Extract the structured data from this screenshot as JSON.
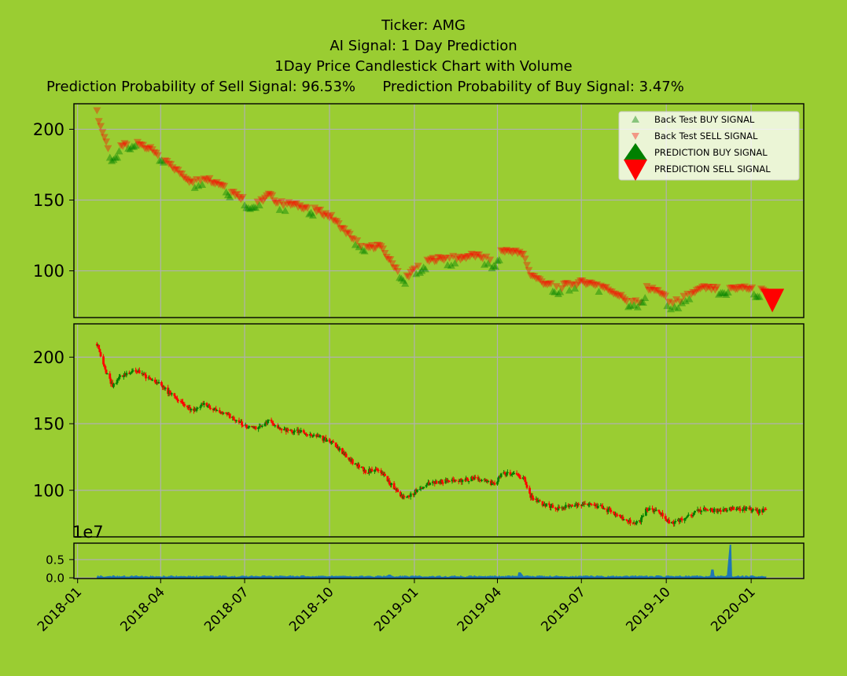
{
  "title_lines": [
    "Ticker: AMG",
    "AI Signal: 1 Day Prediction",
    "1Day Price Candlestick Chart with Volume"
  ],
  "prob_sell": "Prediction Probability of Sell Signal: 96.53%",
  "prob_buy": "Prediction Probability of Buy Signal: 3.47%",
  "colors": {
    "background": "#9acd32",
    "buy": "#008000",
    "sell": "#ff0000",
    "volume": "#1f77b4"
  },
  "chart_data": [
    {
      "type": "scatter",
      "panel": "signals",
      "yticks": [
        100,
        150,
        200
      ],
      "ylim": [
        67,
        218
      ],
      "grid": true,
      "legend_position": "top-right",
      "legend": [
        "Back Test BUY SIGNAL",
        "Back Test SELL SIGNAL",
        "PREDICTION BUY SIGNAL",
        "PREDICTION SELL SIGNAL"
      ],
      "price_path": [
        [
          "2018-01-22",
          210
        ],
        [
          "2018-01-26",
          200
        ],
        [
          "2018-02-02",
          187
        ],
        [
          "2018-02-08",
          178
        ],
        [
          "2018-02-15",
          185
        ],
        [
          "2018-02-25",
          188
        ],
        [
          "2018-03-05",
          190
        ],
        [
          "2018-03-15",
          186
        ],
        [
          "2018-03-26",
          182
        ],
        [
          "2018-04-03",
          178
        ],
        [
          "2018-04-12",
          172
        ],
        [
          "2018-04-25",
          166
        ],
        [
          "2018-05-05",
          160
        ],
        [
          "2018-05-18",
          164
        ],
        [
          "2018-05-29",
          161
        ],
        [
          "2018-06-10",
          158
        ],
        [
          "2018-06-22",
          152
        ],
        [
          "2018-07-05",
          147
        ],
        [
          "2018-07-18",
          147
        ],
        [
          "2018-07-28",
          152
        ],
        [
          "2018-08-06",
          146
        ],
        [
          "2018-08-20",
          145
        ],
        [
          "2018-09-05",
          143
        ],
        [
          "2018-09-20",
          140
        ],
        [
          "2018-10-03",
          136
        ],
        [
          "2018-10-15",
          128
        ],
        [
          "2018-10-28",
          120
        ],
        [
          "2018-11-10",
          114
        ],
        [
          "2018-11-24",
          116
        ],
        [
          "2018-12-08",
          103
        ],
        [
          "2018-12-22",
          93
        ],
        [
          "2019-01-05",
          101
        ],
        [
          "2019-01-20",
          106
        ],
        [
          "2019-02-05",
          107
        ],
        [
          "2019-02-20",
          107
        ],
        [
          "2019-03-05",
          109
        ],
        [
          "2019-03-20",
          107
        ],
        [
          "2019-03-28",
          104
        ],
        [
          "2019-04-05",
          112
        ],
        [
          "2019-04-18",
          112
        ],
        [
          "2019-04-30",
          109
        ],
        [
          "2019-05-06",
          96
        ],
        [
          "2019-05-20",
          90
        ],
        [
          "2019-06-05",
          86
        ],
        [
          "2019-06-20",
          89
        ],
        [
          "2019-07-05",
          90
        ],
        [
          "2019-07-20",
          88
        ],
        [
          "2019-08-05",
          83
        ],
        [
          "2019-08-20",
          77
        ],
        [
          "2019-09-02",
          76
        ],
        [
          "2019-09-10",
          86
        ],
        [
          "2019-09-25",
          83
        ],
        [
          "2019-10-05",
          75
        ],
        [
          "2019-10-15",
          77
        ],
        [
          "2019-10-28",
          82
        ],
        [
          "2019-11-10",
          86
        ],
        [
          "2019-11-25",
          85
        ],
        [
          "2019-12-10",
          86
        ],
        [
          "2019-12-25",
          86
        ],
        [
          "2020-01-10",
          84
        ],
        [
          "2020-01-17",
          85
        ]
      ],
      "buy_signal_dates": [
        "2018-02-06",
        "2018-02-10",
        "2018-02-14",
        "2018-02-26",
        "2018-03-01",
        "2018-03-04",
        "2018-04-01",
        "2018-04-04",
        "2018-05-08",
        "2018-05-12",
        "2018-05-16",
        "2018-06-12",
        "2018-06-15",
        "2018-07-01",
        "2018-07-04",
        "2018-07-07",
        "2018-07-10",
        "2018-07-13",
        "2018-07-17",
        "2018-08-08",
        "2018-08-14",
        "2018-09-10",
        "2018-09-13",
        "2018-10-29",
        "2018-11-02",
        "2018-11-07",
        "2018-12-16",
        "2018-12-19",
        "2018-12-22",
        "2019-01-03",
        "2019-01-08",
        "2019-01-12",
        "2019-02-06",
        "2019-02-10",
        "2019-02-14",
        "2019-03-18",
        "2019-03-22",
        "2019-03-26",
        "2019-03-29",
        "2019-04-02",
        "2019-06-01",
        "2019-06-07",
        "2019-06-18",
        "2019-06-24",
        "2019-07-20",
        "2019-08-22",
        "2019-08-27",
        "2019-08-31",
        "2019-09-04",
        "2019-09-07",
        "2019-10-02",
        "2019-10-06",
        "2019-10-10",
        "2019-10-14",
        "2019-10-18",
        "2019-10-22",
        "2019-10-26",
        "2019-11-28",
        "2019-12-02",
        "2019-12-06",
        "2020-01-05",
        "2020-01-09"
      ],
      "prediction": {
        "date": "2020-01-24",
        "value": 79,
        "signal": "SELL"
      }
    },
    {
      "type": "candlestick",
      "panel": "price",
      "yticks": [
        100,
        150,
        200
      ],
      "ylim": [
        65,
        225
      ],
      "grid": true
    },
    {
      "type": "area",
      "panel": "volume",
      "yticks": [
        0.0,
        0.5
      ],
      "ylim": [
        -0.02,
        0.95
      ],
      "scale_label": "1e7",
      "x_tick_labels": [
        "2018-01",
        "2018-04",
        "2018-07",
        "2018-10",
        "2019-01",
        "2019-04",
        "2019-07",
        "2019-10",
        "2020-01"
      ],
      "spikes": [
        [
          "2018-12-05",
          0.08
        ],
        [
          "2019-04-25",
          0.14
        ],
        [
          "2019-11-20",
          0.22
        ],
        [
          "2019-12-09",
          0.9
        ]
      ],
      "grid": true
    }
  ]
}
